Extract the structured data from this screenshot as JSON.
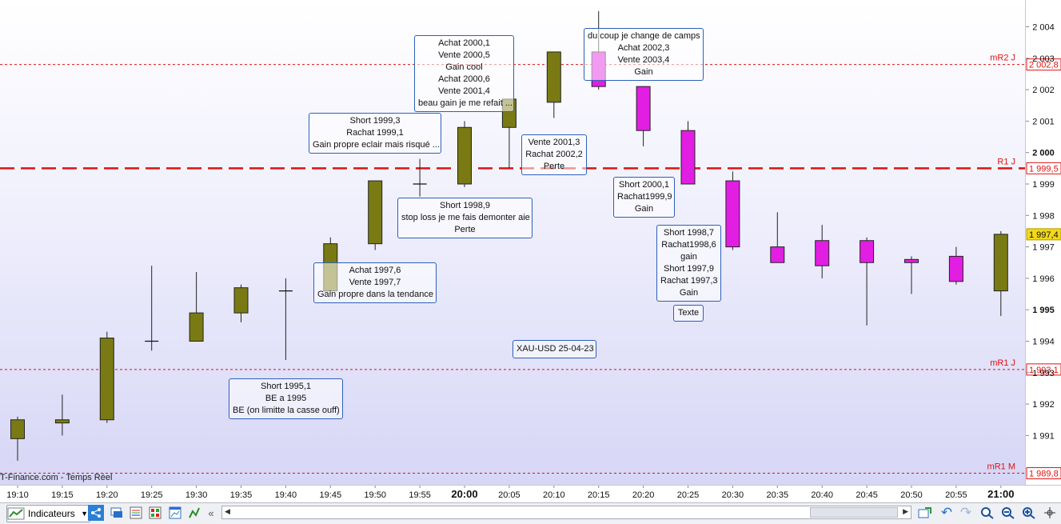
{
  "chart_data": {
    "type": "candlestick",
    "instrument_label": "XAU-USD 25-04-23",
    "source": "T-Finance.com - Temps Réel",
    "y_ticks": [
      "1 991",
      "1 992",
      "1 993",
      "1 994",
      "1 995",
      "1 996",
      "1 997",
      "1 998",
      "1 999",
      "2 000",
      "2 001",
      "2 002",
      "2 003",
      "2 004"
    ],
    "ylim": [
      1989.6,
      2004.9
    ],
    "x_ticks": [
      "19:10",
      "19:15",
      "19:20",
      "19:25",
      "19:30",
      "19:35",
      "19:40",
      "19:45",
      "19:50",
      "19:55",
      "20:00",
      "20:05",
      "20:10",
      "20:15",
      "20:20",
      "20:25",
      "20:30",
      "20:35",
      "20:40",
      "20:45",
      "20:50",
      "20:55",
      "21:00"
    ],
    "candles": [
      {
        "t": "19:10",
        "o": 1990.9,
        "h": 1991.6,
        "l": 1990.2,
        "c": 1991.5
      },
      {
        "t": "19:15",
        "o": 1991.4,
        "h": 1992.3,
        "l": 1991.0,
        "c": 1991.5
      },
      {
        "t": "19:20",
        "o": 1991.5,
        "h": 1994.3,
        "l": 1991.4,
        "c": 1994.1
      },
      {
        "t": "19:25",
        "o": 1994.0,
        "h": 1996.4,
        "l": 1993.7,
        "c": 1994.0
      },
      {
        "t": "19:30",
        "o": 1994.0,
        "h": 1996.2,
        "l": 1994.0,
        "c": 1994.9
      },
      {
        "t": "19:35",
        "o": 1994.9,
        "h": 1995.8,
        "l": 1994.6,
        "c": 1995.7
      },
      {
        "t": "19:40",
        "o": 1995.6,
        "h": 1996.0,
        "l": 1993.4,
        "c": 1995.6
      },
      {
        "t": "19:45",
        "o": 1995.6,
        "h": 1997.3,
        "l": 1995.5,
        "c": 1997.1
      },
      {
        "t": "19:50",
        "o": 1997.1,
        "h": 1999.1,
        "l": 1996.9,
        "c": 1999.1
      },
      {
        "t": "19:55",
        "o": 1999.0,
        "h": 1999.8,
        "l": 1998.6,
        "c": 1999.0
      },
      {
        "t": "20:00",
        "o": 1999.0,
        "h": 2001.0,
        "l": 1998.9,
        "c": 2000.8
      },
      {
        "t": "20:05",
        "o": 2000.8,
        "h": 2001.7,
        "l": 1999.5,
        "c": 2001.7
      },
      {
        "t": "20:10",
        "o": 2001.6,
        "h": 2003.2,
        "l": 2001.1,
        "c": 2003.2
      },
      {
        "t": "20:15",
        "o": 2003.2,
        "h": 2004.5,
        "l": 2002.0,
        "c": 2002.1
      },
      {
        "t": "20:20",
        "o": 2002.1,
        "h": 2002.1,
        "l": 2000.2,
        "c": 2000.7
      },
      {
        "t": "20:25",
        "o": 2000.7,
        "h": 2001.0,
        "l": 1999.0,
        "c": 1999.0
      },
      {
        "t": "20:30",
        "o": 1999.1,
        "h": 1999.4,
        "l": 1996.9,
        "c": 1997.0
      },
      {
        "t": "20:35",
        "o": 1997.0,
        "h": 1998.1,
        "l": 1996.5,
        "c": 1996.5
      },
      {
        "t": "20:40",
        "o": 1997.2,
        "h": 1997.7,
        "l": 1996.0,
        "c": 1996.4
      },
      {
        "t": "20:45",
        "o": 1997.2,
        "h": 1997.3,
        "l": 1994.5,
        "c": 1996.5
      },
      {
        "t": "20:50",
        "o": 1996.6,
        "h": 1996.7,
        "l": 1995.5,
        "c": 1996.5
      },
      {
        "t": "20:55",
        "o": 1996.7,
        "h": 1997.0,
        "l": 1995.8,
        "c": 1995.9
      },
      {
        "t": "21:00",
        "o": 1995.6,
        "h": 1997.5,
        "l": 1994.8,
        "c": 1997.4
      }
    ],
    "levels": [
      {
        "label": "mR2 J",
        "value": "2 002,8",
        "price": 2002.8,
        "style": "dotted"
      },
      {
        "label": "R1 J",
        "value": "1 999,5",
        "price": 1999.5,
        "style": "dashed"
      },
      {
        "label": "mR1 J",
        "value": "1 993,1",
        "price": 1993.1,
        "style": "dotted"
      },
      {
        "label": "mR1 M",
        "value": "1 989,8",
        "price": 1989.8,
        "style": "dotted"
      }
    ],
    "last_price": "1 997,4",
    "colors": {
      "up": "#7a7a14",
      "down": "#e21ee2",
      "level": "#e01212",
      "last_price_bg": "#f2d818",
      "note_border": "#2d60b8"
    }
  },
  "annotations": [
    {
      "id": "note-1",
      "lines": [
        "Achat 2000,1",
        "Vente 2000,5",
        "Gain cool",
        "Achat 2000,6",
        "Vente 2001,4",
        "beau gain je me refait ..."
      ]
    },
    {
      "id": "note-2",
      "lines": [
        "Short 1999,3",
        "Rachat 1999,1",
        "Gain propre eclair mais risqué ..."
      ]
    },
    {
      "id": "note-3",
      "lines": [
        "du coup je change de camps",
        "Achat 2002,3",
        "Vente 2003,4",
        "Gain"
      ]
    },
    {
      "id": "note-4",
      "lines": [
        "Vente 2001,3",
        "Rachat 2002,2",
        "Perte"
      ]
    },
    {
      "id": "note-5",
      "lines": [
        "Short 1998,9",
        "stop loss je me fais demonter aie",
        "Perte"
      ]
    },
    {
      "id": "note-6",
      "lines": [
        "Short 2000,1",
        "Rachat1999,9",
        "Gain"
      ]
    },
    {
      "id": "note-7",
      "lines": [
        "Achat 1997,6",
        "Vente 1997,7",
        "Gain propre dans la tendance"
      ]
    },
    {
      "id": "note-8",
      "lines": [
        "Short 1998,7",
        "Rachat1998,6",
        "gain",
        "Short 1997,9",
        "Rachat 1997,3",
        "Gain"
      ]
    },
    {
      "id": "note-9",
      "lines": [
        "Texte"
      ]
    },
    {
      "id": "note-10",
      "lines": [
        "Short 1995,1",
        "BE a 1995",
        "BE (on limitte la casse ouff)"
      ]
    }
  ],
  "toolbar": {
    "indicators_label": "Indicateurs"
  }
}
